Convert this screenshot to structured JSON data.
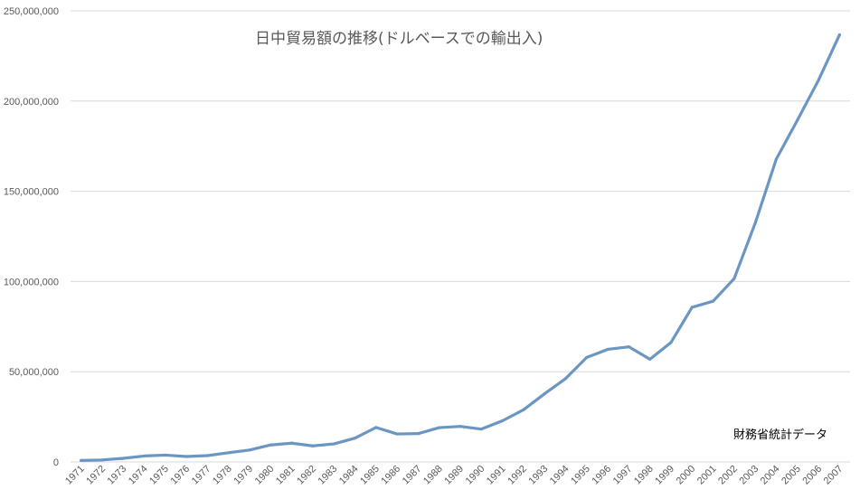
{
  "colors": {
    "line": "#6b96c3",
    "grid": "#d9d9d9",
    "axis_text": "#595959",
    "background": "#ffffff"
  },
  "chart_data": {
    "type": "line",
    "title": "日中貿易額の推移(ドルベースでの輸出入)",
    "annotation": "財務省統計データ",
    "xlabel": "",
    "ylabel": "",
    "ylim": [
      0,
      250000000
    ],
    "y_ticks": [
      0,
      50000000,
      100000000,
      150000000,
      200000000,
      250000000
    ],
    "y_tick_labels": [
      "0",
      "50,000,000",
      "100,000,000",
      "150,000,000",
      "200,000,000",
      "250,000,000"
    ],
    "grid": true,
    "legend": "none",
    "categories": [
      "1971",
      "1972",
      "1973",
      "1974",
      "1975",
      "1976",
      "1977",
      "1978",
      "1979",
      "1980",
      "1981",
      "1982",
      "1983",
      "1984",
      "1985",
      "1986",
      "1987",
      "1988",
      "1989",
      "1990",
      "1991",
      "1992",
      "1993",
      "1994",
      "1995",
      "1996",
      "1997",
      "1998",
      "1999",
      "2000",
      "2001",
      "2002",
      "2003",
      "2004",
      "2005",
      "2006",
      "2007"
    ],
    "series": [
      {
        "values": [
          800000,
          1100000,
          2000000,
          3300000,
          3800000,
          3000000,
          3500000,
          5100000,
          6600000,
          9400000,
          10400000,
          8900000,
          10000000,
          13200000,
          19100000,
          15500000,
          15700000,
          19000000,
          19700000,
          18200000,
          22800000,
          28900000,
          37800000,
          46200000,
          57900000,
          62400000,
          63800000,
          56900000,
          66200000,
          85700000,
          89100000,
          101600000,
          132400000,
          167900000,
          189400000,
          211500000,
          236700000
        ]
      }
    ]
  }
}
